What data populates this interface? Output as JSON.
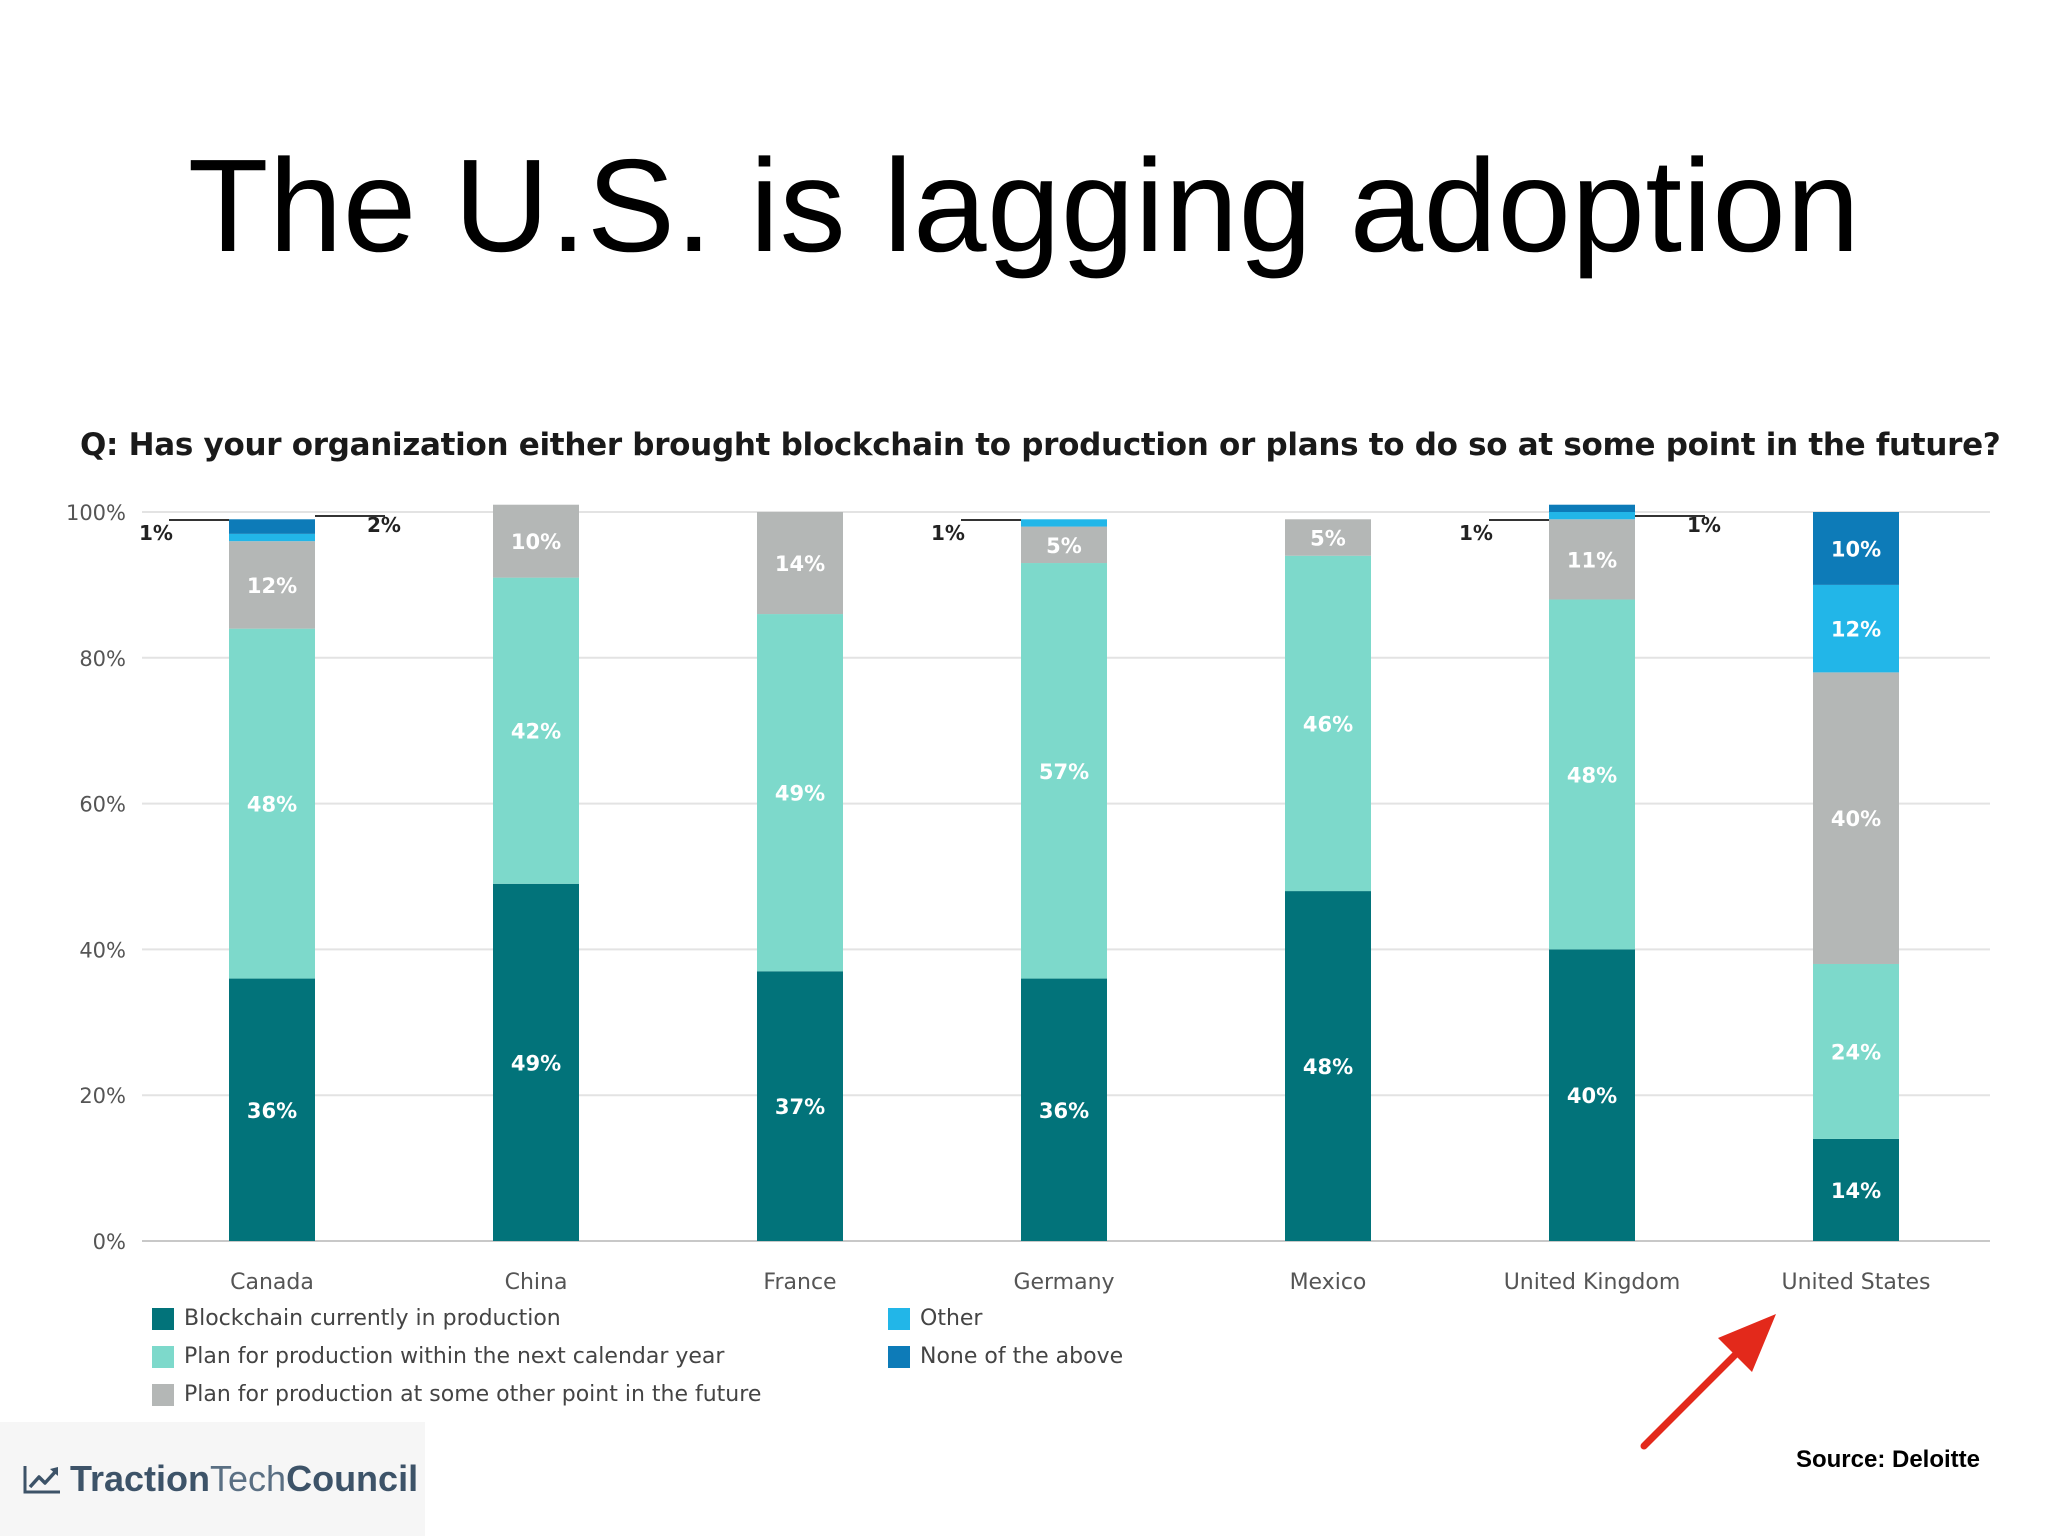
{
  "slide": {
    "title": "The U.S. is lagging adoption",
    "source": "Source: Deloitte",
    "logo": {
      "part1": "Traction",
      "part2": "Tech",
      "part3": "Council",
      "icon": "trend-chart-icon"
    }
  },
  "colors": {
    "production": "#02737a",
    "next_year": "#7dd9cb",
    "future": "#b4b7b6",
    "other": "#22b6e8",
    "none": "#0d7bb8",
    "arrow": "#e3291b"
  },
  "chart_data": {
    "type": "bar",
    "stacked": true,
    "title": "Q: Has your organization either brought blockchain to production or plans to do so at some point in the future?",
    "categories": [
      "Canada",
      "China",
      "France",
      "Germany",
      "Mexico",
      "United Kingdom",
      "United States"
    ],
    "ylim": [
      0,
      100
    ],
    "yticks": [
      "0%",
      "20%",
      "40%",
      "60%",
      "80%",
      "100%"
    ],
    "grid": true,
    "legend_position": "bottom-left",
    "series": [
      {
        "name": "Blockchain currently in production",
        "color_key": "production",
        "values": [
          36,
          49,
          37,
          36,
          48,
          40,
          14
        ]
      },
      {
        "name": "Plan for production within the next calendar year",
        "color_key": "next_year",
        "values": [
          48,
          42,
          49,
          57,
          46,
          48,
          24
        ]
      },
      {
        "name": "Plan for production at some other point in the future",
        "color_key": "future",
        "values": [
          12,
          10,
          14,
          5,
          5,
          11,
          40
        ]
      },
      {
        "name": "Other",
        "color_key": "other",
        "values": [
          1,
          0,
          0,
          1,
          0,
          1,
          12
        ]
      },
      {
        "name": "None of the above",
        "color_key": "none",
        "values": [
          2,
          0,
          0,
          0,
          0,
          1,
          10
        ]
      }
    ],
    "data_labels": [
      [
        "36%",
        "49%",
        "37%",
        "36%",
        "48%",
        "40%",
        "14%"
      ],
      [
        "48%",
        "42%",
        "49%",
        "57%",
        "46%",
        "48%",
        "24%"
      ],
      [
        "12%",
        "10%",
        "14%",
        "5%",
        "5%",
        "11%",
        "40%"
      ],
      [
        "1%",
        "",
        "",
        "1%",
        "",
        "1%",
        "12%"
      ],
      [
        "2%",
        "",
        "",
        "",
        "",
        "1%",
        "10%"
      ]
    ]
  }
}
